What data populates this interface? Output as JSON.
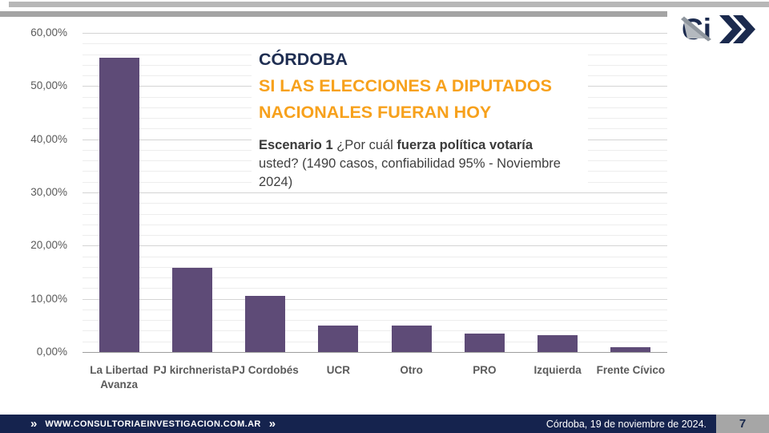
{
  "logo": {
    "text": "Ci"
  },
  "icons": {
    "double_chevron": "»"
  },
  "title_block": {
    "region": "CÓRDOBA",
    "headline": [
      "SI LAS ELECCIONES A DIPUTADOS",
      "NACIONALES FUERAN HOY"
    ],
    "question": {
      "bold1": "Escenario 1",
      "regular1": " ¿Por cuál ",
      "bold2": "fuerza política votaría",
      "regular2": " usted? (1490 casos, confiabilidad 95% - Noviembre 2024)"
    }
  },
  "chart_data": {
    "type": "bar",
    "title": "CÓRDOBA — SI LAS ELECCIONES A DIPUTADOS NACIONALES FUERAN HOY (Escenario 1)",
    "categories": [
      "La Libertad Avanza",
      "PJ kirchnerista",
      "PJ Cordobés",
      "UCR",
      "Otro",
      "PRO",
      "Izquierda",
      "Frente Cívico"
    ],
    "values": [
      55.3,
      15.8,
      10.6,
      5.0,
      4.9,
      3.4,
      3.2,
      0.9
    ],
    "xlabel": "",
    "ylabel": "",
    "ylim": [
      0,
      60
    ],
    "ytick_major_step": 10,
    "ytick_minor_step": 2,
    "ytick_labels": [
      "0,00%",
      "10,00%",
      "20,00%",
      "30,00%",
      "40,00%",
      "50,00%",
      "60,00%"
    ],
    "grid": true,
    "legend": false,
    "bar_color": "#5e4b77"
  },
  "footer": {
    "website": "WWW.CONSULTORIAEINVESTIGACION.COM.AR",
    "date": "Córdoba, 19 de noviembre de 2024.",
    "page_number": "7"
  },
  "colors": {
    "bar_purple": "#5e4b77",
    "title_navy": "#1f2e52",
    "accent_orange": "#f7a11c",
    "footer_navy": "#15234e",
    "logo_navy": "#1b2a4e",
    "page_box_gray": "#a6a6a6",
    "top_bar_gray_1": "#b7b7b7",
    "top_bar_gray_2": "#a4a4a4"
  }
}
